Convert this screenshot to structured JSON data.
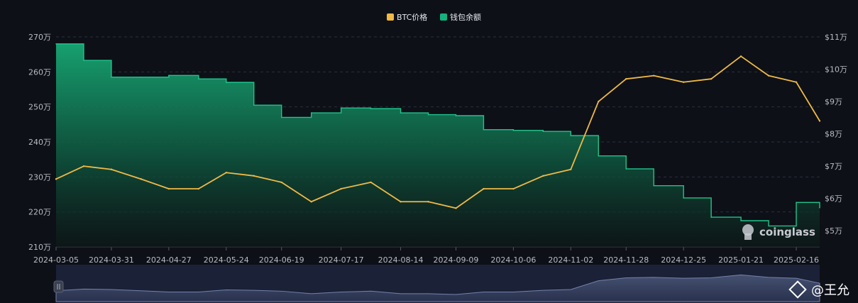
{
  "chart_data": {
    "type": "line",
    "title": "",
    "legend_position": "top-center",
    "grid": true,
    "x": [
      "2024-03-05",
      "2024-03-18",
      "2024-03-31",
      "2024-04-14",
      "2024-04-27",
      "2024-05-11",
      "2024-05-24",
      "2024-06-06",
      "2024-06-19",
      "2024-07-03",
      "2024-07-17",
      "2024-07-31",
      "2024-08-14",
      "2024-08-27",
      "2024-09-09",
      "2024-09-22",
      "2024-10-06",
      "2024-10-20",
      "2024-11-02",
      "2024-11-15",
      "2024-11-28",
      "2024-12-11",
      "2024-12-25",
      "2025-01-07",
      "2025-01-21",
      "2025-02-03",
      "2025-02-16",
      "2025-02-27"
    ],
    "x_tick_labels": [
      "2024-03-05",
      "2024-03-31",
      "2024-04-27",
      "2024-05-24",
      "2024-06-19",
      "2024-07-17",
      "2024-08-14",
      "2024-09-09",
      "2024-10-06",
      "2024-11-02",
      "2024-11-28",
      "2024-12-25",
      "2025-01-21",
      "2025-02-16"
    ],
    "series": [
      {
        "name": "钱包余额",
        "axis": "left",
        "color": "#14b37d",
        "values": [
          2680000,
          2633000,
          2585000,
          2585000,
          2590000,
          2580000,
          2570000,
          2505000,
          2470000,
          2483000,
          2497000,
          2495000,
          2483000,
          2478000,
          2475000,
          2435000,
          2433000,
          2430000,
          2418000,
          2360000,
          2323000,
          2275000,
          2240000,
          2185000,
          2175000,
          2160000,
          2227000,
          2212000
        ]
      },
      {
        "name": "BTC价格",
        "axis": "right",
        "color": "#f0b945",
        "values": [
          66000,
          70000,
          69000,
          66000,
          63000,
          63000,
          68000,
          67000,
          65000,
          59000,
          63000,
          65000,
          59000,
          59000,
          57000,
          63000,
          63000,
          67000,
          69000,
          90000,
          97000,
          98000,
          96000,
          97000,
          104000,
          98000,
          96000,
          84000
        ]
      }
    ],
    "y_left": {
      "min": 2100000,
      "max": 2700000,
      "ticks": [
        "210万",
        "220万",
        "230万",
        "240万",
        "250万",
        "260万",
        "270万"
      ]
    },
    "y_right": {
      "min": 45000,
      "max": 110000,
      "ticks": [
        "$5万",
        "$6万",
        "$7万",
        "$8万",
        "$9万",
        "$10万",
        "$11万"
      ]
    }
  },
  "watermark": "coinglass",
  "author": "@王允"
}
